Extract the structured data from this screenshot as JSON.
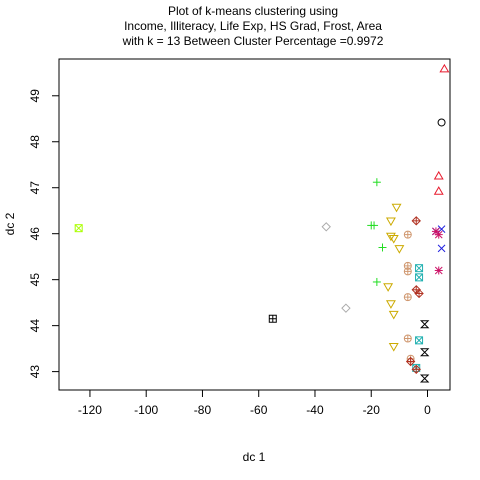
{
  "chart_data": {
    "type": "scatter",
    "title_lines": [
      "Plot of k-means clustering using",
      "Income, Illiteracy, Life Exp, HS Grad, Frost, Area",
      "with  k = 13 Between Cluster Percentage =0.9972"
    ],
    "xlabel": "dc 1",
    "ylabel": "dc 2",
    "xlim": [
      -131,
      8
    ],
    "ylim": [
      42.6,
      49.8
    ],
    "xticks": [
      -120,
      -100,
      -80,
      -60,
      -40,
      -20,
      0
    ],
    "yticks": [
      43,
      44,
      45,
      46,
      47,
      48,
      49
    ],
    "grid": false,
    "clusters": [
      {
        "color": "#000000",
        "symbol": "circle",
        "points": [
          [
            5,
            48.42
          ]
        ]
      },
      {
        "color": "#e8192c",
        "symbol": "triangle-up",
        "points": [
          [
            6,
            49.58
          ],
          [
            4,
            47.25
          ],
          [
            4,
            46.92
          ]
        ]
      },
      {
        "color": "#2020e0",
        "symbol": "cross",
        "points": [
          [
            5,
            46.1
          ],
          [
            5,
            45.68
          ],
          [
            3,
            46.05
          ]
        ]
      },
      {
        "color": "#cc1166",
        "symbol": "asterisk",
        "points": [
          [
            4,
            45.98
          ],
          [
            4,
            45.2
          ],
          [
            3,
            46.05
          ]
        ]
      },
      {
        "color": "#22dd22",
        "symbol": "plus",
        "points": [
          [
            -18,
            47.12
          ],
          [
            -19,
            46.18
          ],
          [
            -20,
            46.18
          ],
          [
            -16,
            45.7
          ],
          [
            -18,
            44.95
          ]
        ]
      },
      {
        "color": "#ccaa00",
        "symbol": "triangle-down",
        "points": [
          [
            -11,
            46.58
          ],
          [
            -13,
            46.28
          ],
          [
            -13,
            45.95
          ],
          [
            -12,
            45.9
          ],
          [
            -10,
            45.68
          ],
          [
            -14,
            44.85
          ],
          [
            -13,
            44.48
          ],
          [
            -12,
            44.25
          ],
          [
            -12,
            43.55
          ]
        ]
      },
      {
        "color": "#d09870",
        "symbol": "circle-plus",
        "points": [
          [
            -7,
            45.98
          ],
          [
            -7,
            45.3
          ],
          [
            -7,
            45.18
          ],
          [
            -7,
            44.62
          ],
          [
            -7,
            43.72
          ],
          [
            -6,
            43.28
          ]
        ]
      },
      {
        "color": "#20b0b0",
        "symbol": "square-x",
        "points": [
          [
            -3,
            45.25
          ],
          [
            -3,
            45.05
          ],
          [
            -3,
            43.68
          ],
          [
            -4,
            43.08
          ]
        ]
      },
      {
        "color": "#b03020",
        "symbol": "diamond-plus",
        "points": [
          [
            -4,
            46.28
          ],
          [
            -4,
            44.78
          ],
          [
            -3,
            44.7
          ],
          [
            -6,
            43.22
          ],
          [
            -4,
            43.05
          ]
        ]
      },
      {
        "color": "#000000",
        "symbol": "hourglass",
        "points": [
          [
            -1,
            44.03
          ],
          [
            -1,
            43.42
          ],
          [
            -1,
            42.85
          ]
        ]
      },
      {
        "color": "#aaaaaa",
        "symbol": "diamond",
        "points": [
          [
            -36,
            46.15
          ],
          [
            -29,
            44.38
          ]
        ]
      },
      {
        "color": "#000000",
        "symbol": "square-plus",
        "points": [
          [
            -55,
            44.15
          ]
        ]
      },
      {
        "color": "#aaff00",
        "symbol": "square-x",
        "points": [
          [
            -124,
            46.12
          ]
        ]
      }
    ]
  }
}
